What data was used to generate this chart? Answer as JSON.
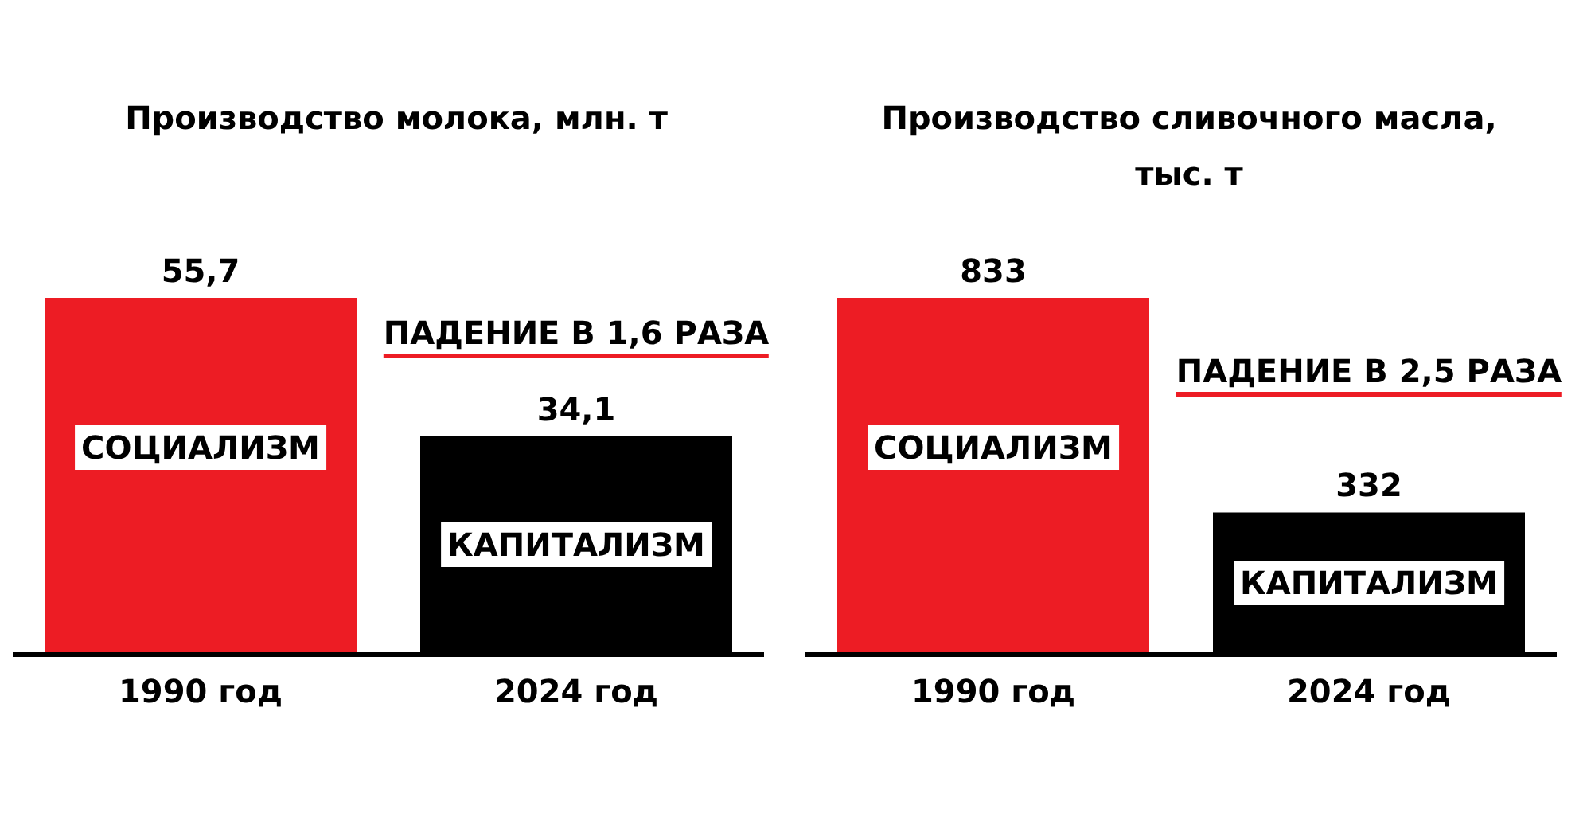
{
  "chart_data": [
    {
      "type": "bar",
      "title": "Производство молока, млн. т",
      "categories": [
        "1990 год",
        "2024 год"
      ],
      "values": [
        55.7,
        34.1
      ],
      "colors": [
        "#ed1c24",
        "#000000"
      ],
      "value_labels": [
        "55,7",
        "34,1"
      ],
      "tick_labels": "x",
      "annotations": [
        "СОЦИАЛИЗМ",
        "КАПИТАЛИЗМ",
        "ПАДЕНИЕ В 1,6 РАЗА"
      ]
    },
    {
      "type": "bar",
      "title": "Производство сливочного масла, тыс. т",
      "categories": [
        "1990 год",
        "2024 год"
      ],
      "values": [
        833,
        332
      ],
      "colors": [
        "#ed1c24",
        "#000000"
      ],
      "data_labels": true,
      "tick_labels": "x",
      "annotations": [
        "СОЦИАЛИЗМ",
        "КАПИТАЛИЗМ",
        "ПАДЕНИЕ В 2,5 РАЗА"
      ]
    }
  ]
}
